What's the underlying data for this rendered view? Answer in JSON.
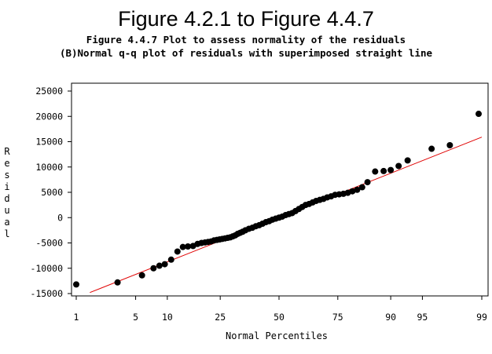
{
  "chart_data": {
    "type": "scatter",
    "title": "Figure 4.2.1 to Figure 4.4.7",
    "subtitle_lines": [
      "Figure 4.4.7 Plot to assess normality of the residuals",
      "(B)Normal q-q plot of residuals with superimposed straight line"
    ],
    "xlabel": "Normal Percentiles",
    "ylabel": "Residual",
    "x_scale": "normal-probability",
    "x_ticks": [
      1,
      5,
      10,
      25,
      50,
      75,
      90,
      95,
      99
    ],
    "y_ticks": [
      -15000,
      -10000,
      -5000,
      0,
      5000,
      10000,
      15000,
      20000,
      25000
    ],
    "ylim": [
      -15000,
      25000
    ],
    "grid": false,
    "colors": {
      "points": "#000000",
      "reference_line": "#e00000"
    },
    "reference_line": {
      "x": [
        1.5,
        99
      ],
      "y": [
        -14800,
        15900
      ]
    },
    "series": [
      {
        "x": [
          1,
          3.2,
          5.8,
          7.5,
          8.5,
          9.5,
          10.8,
          12.2,
          13.5,
          14.8,
          16.2,
          17.5,
          18.7,
          19.8,
          20.8,
          21.8,
          22.8,
          23.8,
          24.8,
          25.8,
          26.8,
          27.8,
          28.8,
          29.8,
          30.8,
          31.8,
          32.8,
          33.8,
          35,
          36.5,
          38,
          39.5,
          41,
          42.5,
          44,
          45.5,
          47,
          48.5,
          50,
          51.5,
          53,
          54.5,
          56,
          57.5,
          59,
          60.5,
          62,
          63.5,
          65,
          66.5,
          68,
          69.5,
          71,
          72.5,
          74,
          75.5,
          77,
          78.5,
          80,
          81.5,
          83,
          84.5,
          86.5,
          88.5,
          90,
          91.5,
          93,
          96,
          97.5,
          98.9
        ],
        "y": [
          -13200,
          -12800,
          -11400,
          -10000,
          -9500,
          -9200,
          -8300,
          -6700,
          -5800,
          -5700,
          -5600,
          -5200,
          -5000,
          -4900,
          -4800,
          -4700,
          -4500,
          -4400,
          -4300,
          -4200,
          -4100,
          -4000,
          -3900,
          -3700,
          -3500,
          -3200,
          -3000,
          -2800,
          -2500,
          -2200,
          -2000,
          -1700,
          -1500,
          -1200,
          -900,
          -700,
          -400,
          -200,
          0,
          200,
          500,
          700,
          900,
          1300,
          1700,
          2100,
          2500,
          2700,
          3000,
          3300,
          3500,
          3700,
          4000,
          4200,
          4500,
          4600,
          4700,
          4900,
          5200,
          5500,
          6000,
          7000,
          9100,
          9200,
          9400,
          10200,
          11300,
          13600,
          14300,
          20500
        ]
      }
    ]
  }
}
